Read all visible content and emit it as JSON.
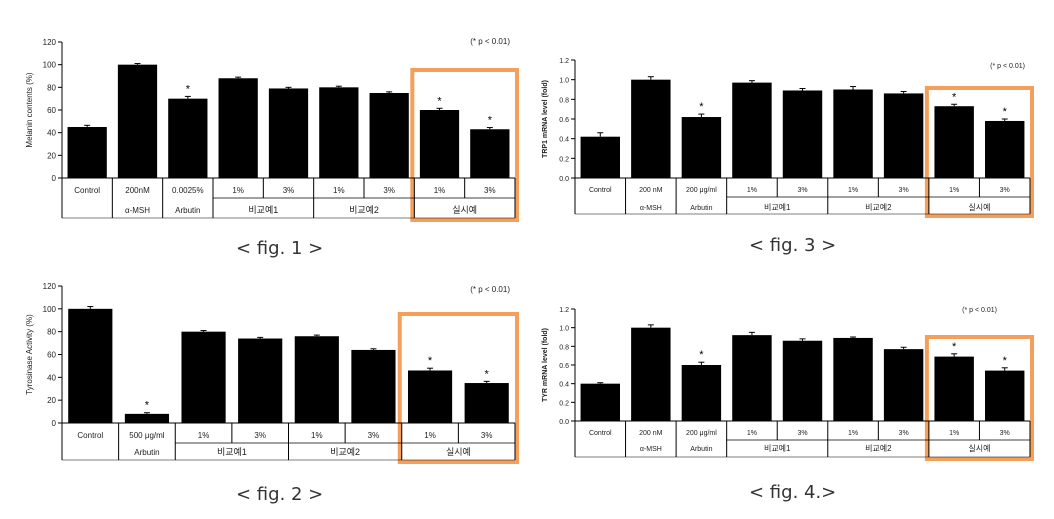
{
  "accent_color": "#F5A05A",
  "bar_color": "#000000",
  "chart_data": [
    {
      "type": "bar",
      "ylabel": "Melanin contents (%)",
      "ylim": [
        0,
        120
      ],
      "yticks": [
        0,
        20,
        40,
        60,
        80,
        100,
        120
      ],
      "significance_note": "(* p < 0.01)",
      "caption": "< fig. 1 >",
      "values": [
        45,
        100,
        70,
        88,
        79,
        80,
        75,
        60,
        43
      ],
      "errors": [
        1.5,
        1,
        2,
        1,
        1,
        1,
        1,
        1.5,
        1.5
      ],
      "significant": [
        false,
        false,
        true,
        false,
        false,
        false,
        false,
        true,
        true
      ],
      "dose_labels": [
        "Control",
        "200nM",
        "0.0025%",
        "1%",
        "3%",
        "1%",
        "3%",
        "1%",
        "3%"
      ],
      "groups": [
        {
          "label": "",
          "span": 1
        },
        {
          "label": "α-MSH",
          "span": 1
        },
        {
          "label": "Arbutin",
          "span": 1
        },
        {
          "label": "비교예1",
          "span": 2
        },
        {
          "label": "비교예2",
          "span": 2
        },
        {
          "label": "실시예",
          "span": 2
        }
      ],
      "highlight": [
        7,
        8
      ]
    },
    {
      "type": "bar",
      "ylabel": "Tyrosinase Activity (%)",
      "ylim": [
        0,
        120
      ],
      "yticks": [
        0,
        20,
        40,
        60,
        80,
        100,
        120
      ],
      "significance_note": "(* p < 0.01)",
      "caption": "< fig. 2 >",
      "values": [
        100,
        8,
        80,
        74,
        76,
        64,
        46,
        35
      ],
      "errors": [
        2,
        1,
        1,
        1,
        1,
        1,
        2,
        1.5
      ],
      "significant": [
        false,
        true,
        false,
        false,
        false,
        false,
        true,
        true
      ],
      "dose_labels": [
        "Control",
        "500 μg/ml",
        "1%",
        "3%",
        "1%",
        "3%",
        "1%",
        "3%"
      ],
      "groups": [
        {
          "label": "",
          "span": 1
        },
        {
          "label": "Arbutin",
          "span": 1
        },
        {
          "label": "비교예1",
          "span": 2
        },
        {
          "label": "비교예2",
          "span": 2
        },
        {
          "label": "실시예",
          "span": 2
        }
      ],
      "highlight": [
        6,
        7
      ]
    },
    {
      "type": "bar",
      "ylabel": "TRP1 mRNA level (fold)",
      "ylim": [
        0,
        1.2
      ],
      "yticks": [
        0,
        0.2,
        0.4,
        0.6,
        0.8,
        1.0,
        1.2
      ],
      "significance_note": "(* p < 0.01)",
      "caption": "< fig. 3 >",
      "values": [
        0.42,
        1.0,
        0.62,
        0.97,
        0.89,
        0.9,
        0.86,
        0.73,
        0.58
      ],
      "errors": [
        0.04,
        0.03,
        0.03,
        0.02,
        0.02,
        0.03,
        0.02,
        0.02,
        0.02
      ],
      "significant": [
        false,
        false,
        true,
        false,
        false,
        false,
        false,
        true,
        true
      ],
      "dose_labels": [
        "Control",
        "200 nM",
        "200 μg/ml",
        "1%",
        "3%",
        "1%",
        "3%",
        "1%",
        "3%"
      ],
      "groups": [
        {
          "label": "",
          "span": 1
        },
        {
          "label": "α-MSH",
          "span": 1
        },
        {
          "label": "Arbutin",
          "span": 1
        },
        {
          "label": "비교예1",
          "span": 2
        },
        {
          "label": "비교예2",
          "span": 2
        },
        {
          "label": "실시예",
          "span": 2
        }
      ],
      "highlight": [
        7,
        8
      ]
    },
    {
      "type": "bar",
      "ylabel": "TYR mRNA level (fold)",
      "ylim": [
        0,
        1.2
      ],
      "yticks": [
        0,
        0.2,
        0.4,
        0.6,
        0.8,
        1.0,
        1.2
      ],
      "significance_note": "(* p < 0.01)",
      "caption": "< fig. 4.>",
      "values": [
        0.4,
        1.0,
        0.6,
        0.92,
        0.86,
        0.89,
        0.77,
        0.69,
        0.54
      ],
      "errors": [
        0.01,
        0.03,
        0.03,
        0.03,
        0.02,
        0.01,
        0.02,
        0.03,
        0.03
      ],
      "significant": [
        false,
        false,
        true,
        false,
        false,
        false,
        false,
        true,
        true
      ],
      "dose_labels": [
        "Control",
        "200 nM",
        "200 μg/ml",
        "1%",
        "3%",
        "1%",
        "3%",
        "1%",
        "3%"
      ],
      "groups": [
        {
          "label": "",
          "span": 1
        },
        {
          "label": "α-MSH",
          "span": 1
        },
        {
          "label": "Arbutin",
          "span": 1
        },
        {
          "label": "비교예1",
          "span": 2
        },
        {
          "label": "비교예2",
          "span": 2
        },
        {
          "label": "실시예",
          "span": 2
        }
      ],
      "highlight": [
        7,
        8
      ]
    }
  ]
}
